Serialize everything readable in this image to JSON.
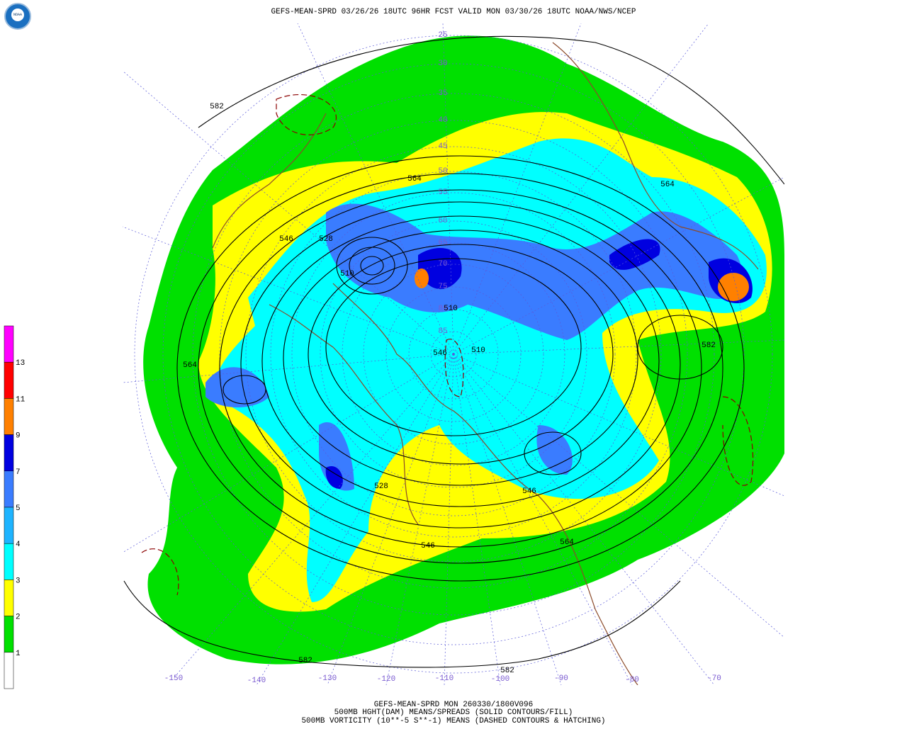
{
  "header": {
    "title": "GEFS-MEAN-SPRD 03/26/26 18UTC 96HR FCST VALID MON 03/30/26 18UTC NOAA/NWS/NCEP",
    "logo": "NOAA"
  },
  "footer": {
    "lines": [
      "GEFS-MEAN-SPRD MON 260330/1800V096",
      "500MB HGHT(DAM) MEANS/SPREADS (SOLID CONTOURS/FILL)",
      "500MB VORTICITY (10**-5 S**-1) MEANS (DASHED CONTOURS & HATCHING)"
    ]
  },
  "colorbar": {
    "labels": [
      "13",
      "11",
      "9",
      "7",
      "5",
      "4",
      "3",
      "2",
      "1"
    ],
    "colors": [
      "#ff00ff",
      "#ff0000",
      "#ff8000",
      "#0000e0",
      "#3a7cff",
      "#1eb4ff",
      "#00ffff",
      "#ffff00",
      "#00e000",
      "#ffffff"
    ]
  },
  "longitude_labels": [
    "-150",
    "-140",
    "-130",
    "-120",
    "-110",
    "-100",
    "-90",
    "-80",
    "-70"
  ],
  "latitude_labels": [
    "25",
    "30",
    "35",
    "40",
    "45",
    "50",
    "55",
    "60",
    "65",
    "70",
    "75",
    "80",
    "85"
  ],
  "contour_labels": [
    "582",
    "564",
    "564",
    "546",
    "528",
    "510",
    "546",
    "510",
    "564",
    "582",
    "528",
    "546",
    "564",
    "582",
    "582",
    "546",
    "510"
  ]
}
